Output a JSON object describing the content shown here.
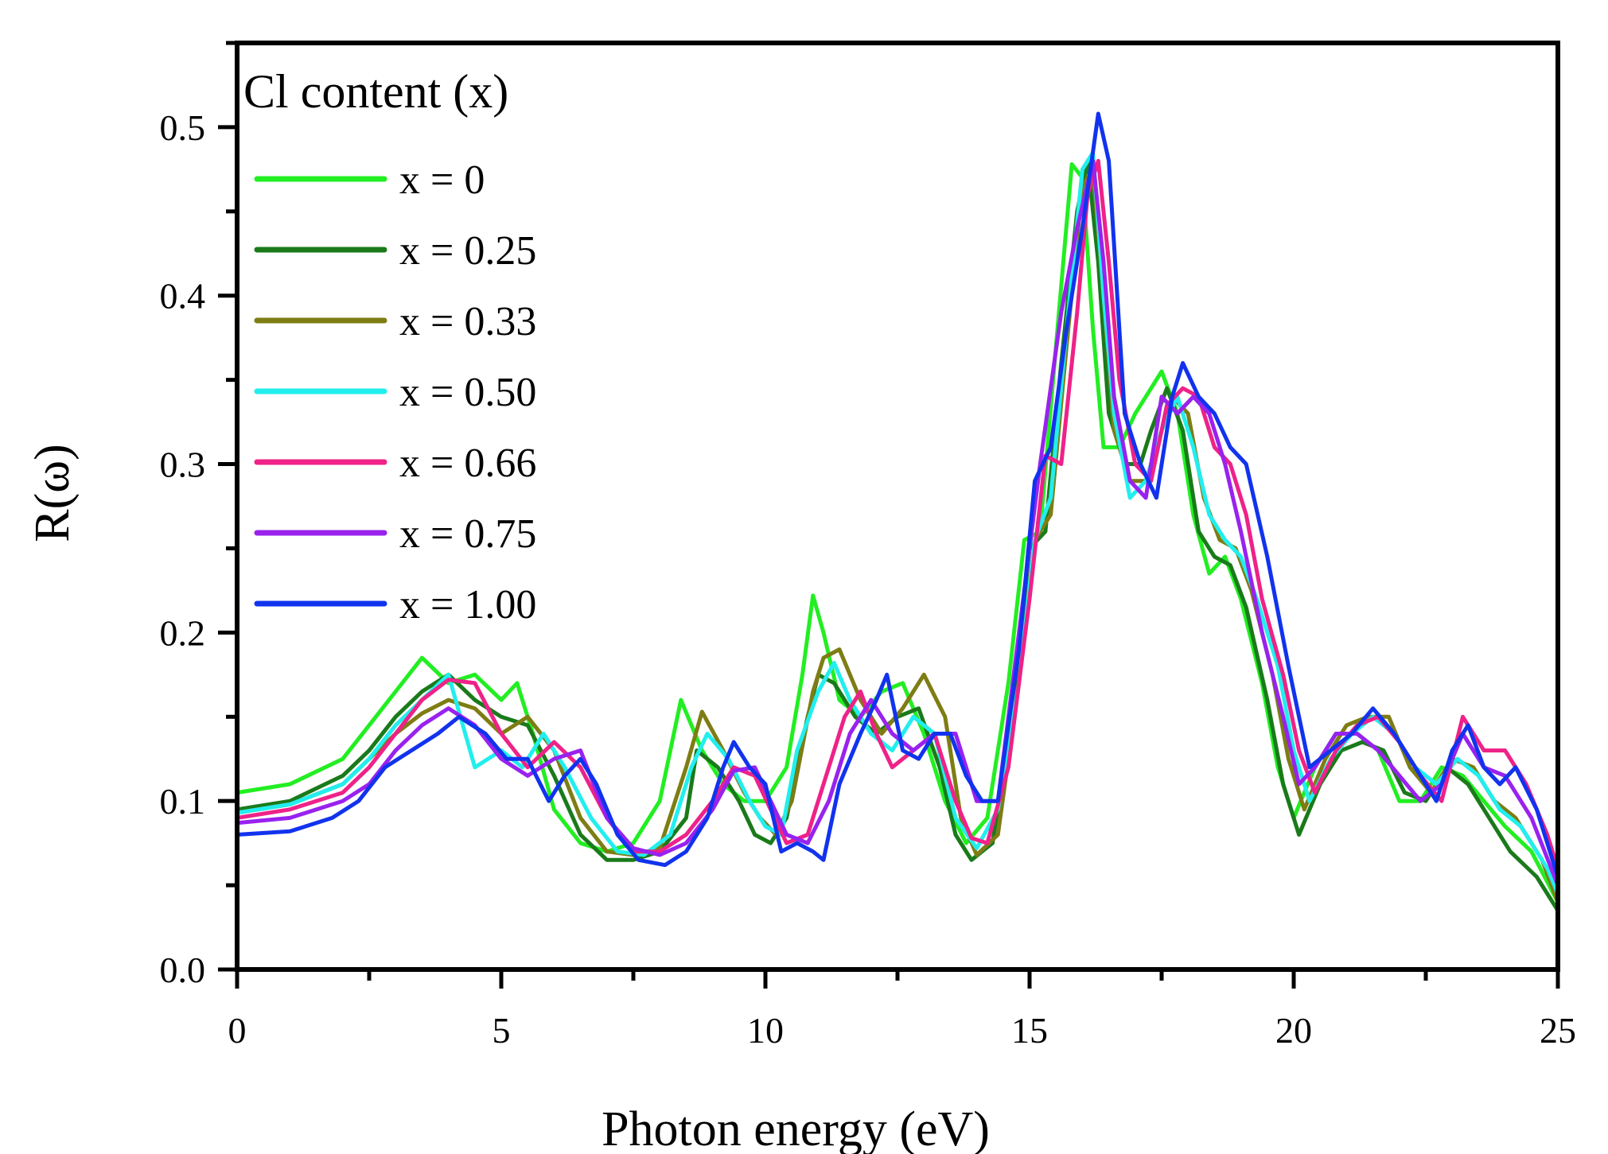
{
  "chart_data": {
    "type": "line",
    "title": "",
    "xlabel": "Photon energy (eV)",
    "ylabel": "R(ω)",
    "xlim": [
      0,
      25
    ],
    "ylim": [
      0,
      0.55
    ],
    "xticks": [
      0,
      5,
      10,
      15,
      20,
      25
    ],
    "xtick_labels": [
      "0",
      "5",
      "10",
      "15",
      "20",
      "25"
    ],
    "yticks": [
      0.0,
      0.1,
      0.2,
      0.3,
      0.4,
      0.5
    ],
    "ytick_labels": [
      "0.0",
      "0.1",
      "0.2",
      "0.3",
      "0.4",
      "0.5"
    ],
    "x_minor_step": 2.5,
    "y_minor_step": 0.05,
    "grid": false,
    "legend": {
      "title": "Cl content (x)",
      "placement": "top-left"
    },
    "series": [
      {
        "name": "x = 0",
        "color": "#22ee22",
        "x": [
          0,
          1,
          2,
          2.5,
          3,
          3.5,
          4,
          4.5,
          5,
          5.3,
          5.6,
          6,
          6.5,
          7,
          7.5,
          8,
          8.4,
          8.8,
          9.2,
          9.6,
          10,
          10.4,
          10.7,
          10.9,
          11.1,
          11.4,
          11.8,
          12.2,
          12.6,
          13,
          13.4,
          13.8,
          14.2,
          14.6,
          14.9,
          15.2,
          15.5,
          15.8,
          16.0,
          16.2,
          16.4,
          16.7,
          17.0,
          17.2,
          17.5,
          17.8,
          18.1,
          18.4,
          18.7,
          19.0,
          19.4,
          19.7,
          20.0,
          20.4,
          20.8,
          21.2,
          21.6,
          22.0,
          22.4,
          22.8,
          23.2,
          23.6,
          24.0,
          24.5,
          25
        ],
        "y": [
          0.105,
          0.11,
          0.125,
          0.145,
          0.165,
          0.185,
          0.17,
          0.175,
          0.16,
          0.17,
          0.14,
          0.095,
          0.075,
          0.07,
          0.075,
          0.1,
          0.16,
          0.13,
          0.11,
          0.1,
          0.1,
          0.12,
          0.175,
          0.222,
          0.2,
          0.16,
          0.15,
          0.165,
          0.17,
          0.14,
          0.1,
          0.075,
          0.09,
          0.17,
          0.255,
          0.26,
          0.37,
          0.478,
          0.47,
          0.38,
          0.31,
          0.31,
          0.33,
          0.34,
          0.355,
          0.33,
          0.27,
          0.235,
          0.245,
          0.22,
          0.17,
          0.12,
          0.09,
          0.12,
          0.14,
          0.14,
          0.13,
          0.1,
          0.1,
          0.12,
          0.115,
          0.1,
          0.085,
          0.07,
          0.04
        ]
      },
      {
        "name": "x = 0.25",
        "color": "#1a7a1a",
        "x": [
          0,
          1,
          2,
          2.5,
          3,
          3.5,
          4,
          4.5,
          5,
          5.5,
          6,
          6.5,
          7,
          7.5,
          8,
          8.5,
          8.7,
          9.1,
          9.5,
          9.8,
          10.1,
          10.4,
          10.8,
          11.0,
          11.3,
          11.7,
          12.1,
          12.5,
          12.9,
          13.3,
          13.6,
          13.9,
          14.3,
          14.7,
          15.0,
          15.3,
          15.6,
          15.9,
          16.1,
          16.3,
          16.5,
          16.8,
          17.1,
          17.3,
          17.6,
          17.9,
          18.2,
          18.5,
          18.8,
          19.1,
          19.5,
          19.8,
          20.1,
          20.5,
          20.9,
          21.3,
          21.7,
          22.1,
          22.5,
          22.9,
          23.3,
          23.7,
          24.1,
          24.6,
          25
        ],
        "y": [
          0.095,
          0.1,
          0.115,
          0.13,
          0.15,
          0.165,
          0.175,
          0.16,
          0.15,
          0.145,
          0.115,
          0.08,
          0.065,
          0.065,
          0.07,
          0.09,
          0.13,
          0.12,
          0.1,
          0.08,
          0.075,
          0.09,
          0.15,
          0.175,
          0.17,
          0.15,
          0.14,
          0.15,
          0.155,
          0.12,
          0.08,
          0.065,
          0.075,
          0.16,
          0.25,
          0.26,
          0.36,
          0.45,
          0.48,
          0.42,
          0.33,
          0.3,
          0.3,
          0.32,
          0.345,
          0.32,
          0.26,
          0.245,
          0.24,
          0.215,
          0.16,
          0.11,
          0.08,
          0.11,
          0.13,
          0.135,
          0.13,
          0.105,
          0.1,
          0.12,
          0.11,
          0.09,
          0.07,
          0.055,
          0.035
        ]
      },
      {
        "name": "x = 0.33",
        "color": "#7d7d14",
        "x": [
          0,
          1,
          2,
          2.5,
          3,
          3.5,
          4,
          4.5,
          5,
          5.5,
          6,
          6.5,
          7,
          7.5,
          8,
          8.5,
          8.8,
          9.2,
          9.6,
          9.9,
          10.2,
          10.5,
          10.9,
          11.1,
          11.4,
          11.8,
          12.2,
          12.6,
          13.0,
          13.4,
          13.7,
          14.0,
          14.4,
          14.8,
          15.1,
          15.4,
          15.7,
          16.0,
          16.2,
          16.4,
          16.6,
          16.9,
          17.2,
          17.4,
          17.7,
          18.0,
          18.3,
          18.6,
          18.9,
          19.2,
          19.6,
          19.9,
          20.2,
          20.6,
          21.0,
          21.4,
          21.8,
          22.2,
          22.6,
          23.0,
          23.4,
          23.8,
          24.2,
          24.7,
          25
        ],
        "y": [
          0.093,
          0.098,
          0.11,
          0.125,
          0.14,
          0.152,
          0.16,
          0.155,
          0.14,
          0.15,
          0.13,
          0.09,
          0.07,
          0.068,
          0.072,
          0.12,
          0.153,
          0.13,
          0.105,
          0.09,
          0.08,
          0.1,
          0.165,
          0.185,
          0.19,
          0.16,
          0.14,
          0.155,
          0.175,
          0.15,
          0.09,
          0.068,
          0.08,
          0.17,
          0.255,
          0.27,
          0.37,
          0.465,
          0.475,
          0.4,
          0.32,
          0.29,
          0.29,
          0.31,
          0.34,
          0.33,
          0.28,
          0.255,
          0.25,
          0.225,
          0.175,
          0.125,
          0.095,
          0.125,
          0.145,
          0.15,
          0.15,
          0.12,
          0.105,
          0.125,
          0.12,
          0.1,
          0.09,
          0.065,
          0.04
        ]
      },
      {
        "name": "x = 0.50",
        "color": "#22eeee",
        "x": [
          0,
          1,
          2,
          2.5,
          3,
          3.5,
          4,
          4.5,
          5,
          5.4,
          5.8,
          6.2,
          6.7,
          7.2,
          7.7,
          8.2,
          8.6,
          8.9,
          9.3,
          9.7,
          10.0,
          10.3,
          10.6,
          11.0,
          11.3,
          11.6,
          12.0,
          12.4,
          12.8,
          13.2,
          13.6,
          14.0,
          14.4,
          14.8,
          15.1,
          15.4,
          15.7,
          16.0,
          16.2,
          16.4,
          16.6,
          16.9,
          17.2,
          17.5,
          17.8,
          18.1,
          18.4,
          18.7,
          19.0,
          19.3,
          19.7,
          20.0,
          20.3,
          20.7,
          21.1,
          21.5,
          21.9,
          22.3,
          22.7,
          23.1,
          23.5,
          23.9,
          24.3,
          24.8,
          25
        ],
        "y": [
          0.093,
          0.098,
          0.11,
          0.125,
          0.145,
          0.16,
          0.175,
          0.12,
          0.13,
          0.12,
          0.14,
          0.12,
          0.09,
          0.07,
          0.068,
          0.08,
          0.12,
          0.14,
          0.125,
          0.1,
          0.085,
          0.08,
          0.13,
          0.165,
          0.182,
          0.16,
          0.14,
          0.13,
          0.15,
          0.14,
          0.09,
          0.072,
          0.095,
          0.17,
          0.255,
          0.28,
          0.38,
          0.475,
          0.485,
          0.4,
          0.33,
          0.28,
          0.29,
          0.32,
          0.34,
          0.31,
          0.27,
          0.255,
          0.245,
          0.22,
          0.18,
          0.13,
          0.1,
          0.125,
          0.14,
          0.15,
          0.14,
          0.12,
          0.11,
          0.125,
          0.115,
          0.095,
          0.085,
          0.06,
          0.045
        ]
      },
      {
        "name": "x = 0.66",
        "color": "#ee2288",
        "x": [
          0,
          1,
          2,
          2.5,
          3,
          3.5,
          4,
          4.5,
          5,
          5.5,
          6,
          6.5,
          7,
          7.5,
          8,
          8.5,
          9,
          9.4,
          9.8,
          10.1,
          10.4,
          10.8,
          11.2,
          11.5,
          11.8,
          12.1,
          12.4,
          12.8,
          13.2,
          13.6,
          13.9,
          14.2,
          14.6,
          15.0,
          15.3,
          15.6,
          15.9,
          16.1,
          16.3,
          16.5,
          16.7,
          17.0,
          17.3,
          17.6,
          17.9,
          18.2,
          18.5,
          18.8,
          19.1,
          19.4,
          19.8,
          20.1,
          20.4,
          20.8,
          21.2,
          21.6,
          22.0,
          22.4,
          22.8,
          23.2,
          23.6,
          24.0,
          24.4,
          24.8,
          25
        ],
        "y": [
          0.09,
          0.095,
          0.105,
          0.12,
          0.14,
          0.16,
          0.172,
          0.17,
          0.14,
          0.12,
          0.135,
          0.12,
          0.09,
          0.07,
          0.07,
          0.08,
          0.1,
          0.12,
          0.115,
          0.095,
          0.075,
          0.08,
          0.12,
          0.15,
          0.165,
          0.14,
          0.12,
          0.13,
          0.14,
          0.1,
          0.078,
          0.075,
          0.12,
          0.22,
          0.305,
          0.3,
          0.39,
          0.46,
          0.48,
          0.42,
          0.35,
          0.3,
          0.29,
          0.335,
          0.345,
          0.34,
          0.31,
          0.3,
          0.27,
          0.22,
          0.175,
          0.13,
          0.105,
          0.13,
          0.145,
          0.15,
          0.135,
          0.115,
          0.1,
          0.15,
          0.13,
          0.13,
          0.11,
          0.08,
          0.06
        ]
      },
      {
        "name": "x = 0.75",
        "color": "#9922ee",
        "x": [
          0,
          1,
          2,
          2.5,
          3,
          3.5,
          4,
          4.5,
          5,
          5.5,
          6,
          6.5,
          7,
          7.5,
          8,
          8.5,
          9,
          9.4,
          9.8,
          10.1,
          10.4,
          10.8,
          11.2,
          11.6,
          12.0,
          12.4,
          12.8,
          13.2,
          13.6,
          14.0,
          14.4,
          14.8,
          15.2,
          15.6,
          15.9,
          16.2,
          16.4,
          16.6,
          16.9,
          17.2,
          17.5,
          17.8,
          18.1,
          18.4,
          18.7,
          19.0,
          19.4,
          19.8,
          20.1,
          20.4,
          20.8,
          21.2,
          21.6,
          22.0,
          22.4,
          22.8,
          23.2,
          23.6,
          24.0,
          24.5,
          25
        ],
        "y": [
          0.087,
          0.09,
          0.1,
          0.11,
          0.13,
          0.145,
          0.155,
          0.145,
          0.125,
          0.115,
          0.125,
          0.13,
          0.09,
          0.072,
          0.068,
          0.075,
          0.095,
          0.118,
          0.12,
          0.1,
          0.08,
          0.075,
          0.1,
          0.14,
          0.16,
          0.14,
          0.13,
          0.14,
          0.14,
          0.1,
          0.1,
          0.2,
          0.3,
          0.39,
          0.44,
          0.48,
          0.42,
          0.34,
          0.29,
          0.28,
          0.34,
          0.33,
          0.34,
          0.33,
          0.3,
          0.26,
          0.2,
          0.15,
          0.11,
          0.12,
          0.14,
          0.14,
          0.13,
          0.115,
          0.1,
          0.11,
          0.14,
          0.12,
          0.115,
          0.09,
          0.05
        ]
      },
      {
        "name": "x = 1.00",
        "color": "#1133ee",
        "x": [
          0,
          1,
          1.8,
          2.3,
          2.8,
          3.3,
          3.8,
          4.2,
          4.7,
          5.1,
          5.5,
          5.9,
          6.2,
          6.5,
          6.8,
          7.2,
          7.6,
          8.1,
          8.5,
          8.9,
          9.2,
          9.4,
          9.7,
          10.0,
          10.3,
          10.6,
          10.9,
          11.1,
          11.4,
          11.8,
          12.1,
          12.3,
          12.6,
          12.9,
          13.2,
          13.5,
          13.8,
          14.1,
          14.4,
          14.8,
          15.1,
          15.4,
          15.7,
          16.0,
          16.3,
          16.5,
          16.8,
          17.1,
          17.4,
          17.7,
          17.9,
          18.2,
          18.5,
          18.8,
          19.1,
          19.5,
          19.9,
          20.3,
          20.7,
          21.1,
          21.5,
          21.9,
          22.3,
          22.7,
          23.0,
          23.3,
          23.6,
          23.9,
          24.2,
          24.6,
          25
        ],
        "y": [
          0.08,
          0.082,
          0.09,
          0.1,
          0.12,
          0.13,
          0.14,
          0.15,
          0.14,
          0.125,
          0.125,
          0.1,
          0.115,
          0.125,
          0.11,
          0.08,
          0.065,
          0.062,
          0.07,
          0.09,
          0.12,
          0.135,
          0.12,
          0.11,
          0.07,
          0.075,
          0.07,
          0.065,
          0.11,
          0.14,
          0.16,
          0.175,
          0.13,
          0.125,
          0.14,
          0.14,
          0.115,
          0.1,
          0.1,
          0.19,
          0.29,
          0.31,
          0.38,
          0.44,
          0.508,
          0.48,
          0.33,
          0.3,
          0.28,
          0.34,
          0.36,
          0.34,
          0.33,
          0.31,
          0.3,
          0.245,
          0.18,
          0.12,
          0.13,
          0.14,
          0.155,
          0.14,
          0.12,
          0.1,
          0.13,
          0.145,
          0.12,
          0.11,
          0.12,
          0.095,
          0.055
        ]
      }
    ]
  }
}
